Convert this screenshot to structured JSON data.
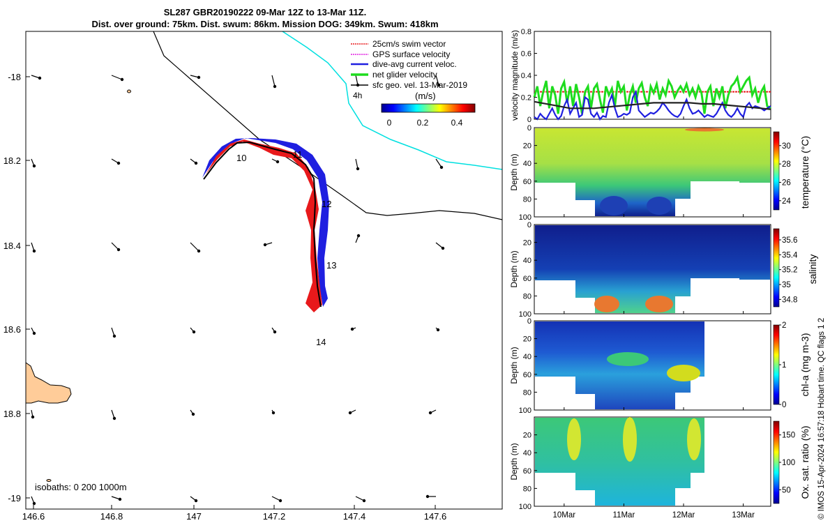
{
  "title": {
    "line1": "SL287 GBR20190222 09-Mar 12Z to 13-Mar 11Z.",
    "line2": "Dist. over ground: 75km. Dist. swum: 86km. Mission DOG: 349km. Swum: 418km"
  },
  "map": {
    "legend": [
      {
        "label": "25cm/s swim vector",
        "color": "#e8191b"
      },
      {
        "label": "GPS surface velocity",
        "color": "#e01be0"
      },
      {
        "label": "dive-avg current veloc.",
        "color": "#1f1fe0"
      },
      {
        "label": "net glider velocity",
        "color": "#1edc1e"
      },
      {
        "label": "sfc geo. vel. 13-Mar-2019",
        "color": "#000000"
      }
    ],
    "legend_4h": "4h",
    "colorbar": {
      "label": "(m/s)",
      "ticks": [
        "0",
        "0.2",
        "0.4"
      ]
    },
    "x_ticks": [
      "146.6",
      "146.8",
      "147",
      "147.2",
      "147.4",
      "147.6"
    ],
    "y_ticks": [
      "-18",
      "18.2",
      "18.4",
      "18.6",
      "18.8",
      "-19"
    ],
    "day_labels": [
      "10",
      "11",
      "12",
      "13",
      "14"
    ],
    "isobaths_label": "isobaths: 0   200  1000m"
  },
  "chart_data": [
    {
      "type": "line",
      "ylabel": "velocity magnitude (m/s)",
      "ylim": [
        0,
        0.8
      ],
      "y_ticks": [
        "0",
        "0.2",
        "0.4",
        "0.6",
        "0.8"
      ],
      "x_ticks": [
        "10Mar",
        "11Mar",
        "12Mar",
        "13Mar"
      ],
      "x_range_days": [
        9.5,
        13.46
      ],
      "series": [
        {
          "name": "25cm/s swim vector",
          "color": "#e8191b",
          "x": [
            9.5,
            13.46
          ],
          "y": [
            0.25,
            0.25
          ]
        },
        {
          "name": "net glider velocity",
          "color": "#1edc1e",
          "x": [
            9.5,
            9.55,
            9.6,
            9.65,
            9.7,
            9.75,
            9.8,
            9.85,
            9.9,
            9.95,
            10.0,
            10.05,
            10.1,
            10.15,
            10.2,
            10.25,
            10.3,
            10.35,
            10.4,
            10.45,
            10.5,
            10.55,
            10.6,
            10.65,
            10.7,
            10.75,
            10.8,
            10.85,
            10.9,
            10.95,
            11.0,
            11.05,
            11.1,
            11.15,
            11.2,
            11.25,
            11.3,
            11.35,
            11.4,
            11.45,
            11.5,
            11.55,
            11.6,
            11.65,
            11.7,
            11.75,
            11.8,
            11.85,
            11.9,
            11.95,
            12.0,
            12.05,
            12.1,
            12.15,
            12.2,
            12.25,
            12.3,
            12.35,
            12.4,
            12.45,
            12.5,
            12.55,
            12.6,
            12.65,
            12.7,
            12.75,
            12.8,
            12.85,
            12.9,
            12.95,
            13.0,
            13.05,
            13.1,
            13.15,
            13.2,
            13.25,
            13.3,
            13.35,
            13.4,
            13.46
          ],
          "y": [
            0.2,
            0.3,
            0.12,
            0.25,
            0.35,
            0.1,
            0.3,
            0.22,
            0.05,
            0.28,
            0.34,
            0.15,
            0.3,
            0.12,
            0.32,
            0.2,
            0.05,
            0.25,
            0.3,
            0.1,
            0.28,
            0.32,
            0.18,
            0.06,
            0.3,
            0.22,
            0.28,
            0.12,
            0.35,
            0.25,
            0.3,
            0.08,
            0.22,
            0.3,
            0.15,
            0.28,
            0.33,
            0.2,
            0.12,
            0.3,
            0.24,
            0.32,
            0.18,
            0.28,
            0.22,
            0.35,
            0.3,
            0.2,
            0.26,
            0.3,
            0.25,
            0.32,
            0.22,
            0.28,
            0.2,
            0.3,
            0.24,
            0.05,
            0.25,
            0.3,
            0.12,
            0.28,
            0.2,
            0.3,
            0.1,
            0.22,
            0.3,
            0.33,
            0.38,
            0.25,
            0.3,
            0.35,
            0.38,
            0.22,
            0.28,
            0.15,
            0.25,
            0.3,
            0.12,
            0.1
          ]
        },
        {
          "name": "dive-avg current veloc.",
          "color": "#1f1fe0",
          "x": [
            9.5,
            9.55,
            9.6,
            9.65,
            9.7,
            9.75,
            9.8,
            9.85,
            9.9,
            9.95,
            10.0,
            10.05,
            10.1,
            10.15,
            10.2,
            10.25,
            10.3,
            10.35,
            10.4,
            10.45,
            10.5,
            10.55,
            10.6,
            10.65,
            10.7,
            10.75,
            10.8,
            10.85,
            10.9,
            10.95,
            11.0,
            11.05,
            11.1,
            11.15,
            11.2,
            11.25,
            11.3,
            11.35,
            11.4,
            11.45,
            11.5,
            11.55,
            11.6,
            11.65,
            11.7,
            11.75,
            11.8,
            11.85,
            11.9,
            11.95,
            12.0,
            12.05,
            12.1,
            12.15,
            12.2,
            12.25,
            12.3,
            12.35,
            12.4,
            12.45,
            12.5,
            12.55,
            12.6,
            12.65,
            12.7,
            12.75,
            12.8,
            12.85,
            12.9,
            12.95,
            13.0,
            13.05,
            13.1,
            13.15,
            13.2,
            13.25,
            13.3,
            13.35,
            13.4,
            13.46
          ],
          "y": [
            0.02,
            0.0,
            0.05,
            0.02,
            0.0,
            0.05,
            0.1,
            0.04,
            0.0,
            0.03,
            0.12,
            0.18,
            0.05,
            0.1,
            0.15,
            0.02,
            0.04,
            0.2,
            0.18,
            0.05,
            0.02,
            0.06,
            0.0,
            0.03,
            0.02,
            0.15,
            0.22,
            0.1,
            0.02,
            0.03,
            0.05,
            0.04,
            0.06,
            0.2,
            0.25,
            0.08,
            0.05,
            0.02,
            0.04,
            0.06,
            0.05,
            0.07,
            0.1,
            0.15,
            0.12,
            0.08,
            0.05,
            0.03,
            0.02,
            0.05,
            0.12,
            0.18,
            0.1,
            0.05,
            0.06,
            0.08,
            0.05,
            0.02,
            0.04,
            0.03,
            0.02,
            0.05,
            0.1,
            0.15,
            0.08,
            0.04,
            0.02,
            0.05,
            0.1,
            0.05,
            0.02,
            0.12,
            0.15,
            0.1,
            0.12,
            0.11,
            0.1,
            0.08,
            0.1,
            0.12
          ]
        },
        {
          "name": "sfc geo. vel.",
          "color": "#222222",
          "x": [
            9.5,
            9.7,
            9.9,
            10.1,
            10.3,
            10.5,
            10.7,
            10.9,
            11.1,
            11.3,
            11.5,
            11.7,
            11.9,
            12.1,
            12.3,
            12.5,
            12.7,
            12.9,
            13.1,
            13.3,
            13.46
          ],
          "y": [
            0.16,
            0.14,
            0.12,
            0.1,
            0.1,
            0.1,
            0.11,
            0.12,
            0.13,
            0.14,
            0.15,
            0.15,
            0.15,
            0.15,
            0.14,
            0.14,
            0.13,
            0.12,
            0.11,
            0.1,
            0.09
          ]
        }
      ]
    },
    {
      "type": "heatmap",
      "name": "temperature",
      "label": "temperature (°C)",
      "ylabel": "Depth (m)",
      "y_ticks": [
        "0",
        "20",
        "40",
        "60",
        "80",
        "100"
      ],
      "colorbar_ticks": [
        "24",
        "26",
        "28",
        "30"
      ],
      "colorbar_range": [
        23,
        31.5
      ]
    },
    {
      "type": "heatmap",
      "name": "salinity",
      "label": "salinity",
      "ylabel": "Depth (m)",
      "y_ticks": [
        "0",
        "20",
        "40",
        "60",
        "80",
        "100"
      ],
      "colorbar_ticks": [
        "34.8",
        "35",
        "35.2",
        "35.4",
        "35.6"
      ],
      "colorbar_range": [
        34.7,
        35.75
      ]
    },
    {
      "type": "heatmap",
      "name": "chlorophyll",
      "label": "chl-a (mg m-3)",
      "ylabel": "Depth (m)",
      "y_ticks": [
        "0",
        "20",
        "40",
        "60",
        "80",
        "100"
      ],
      "colorbar_ticks": [
        "0",
        "1",
        "2"
      ],
      "colorbar_range": [
        0,
        2
      ]
    },
    {
      "type": "heatmap",
      "name": "oxygen",
      "label": "Ox. sat. ratio (%)",
      "ylabel": "Depth (m)",
      "y_ticks": [
        "20",
        "40",
        "60",
        "80",
        "100"
      ],
      "colorbar_ticks": [
        "50",
        "100",
        "150"
      ],
      "colorbar_range": [
        25,
        175
      ]
    }
  ],
  "credit": "© IMOS 15-Apr-2024 16:57:18 Hobart time. QC flags 1  2"
}
